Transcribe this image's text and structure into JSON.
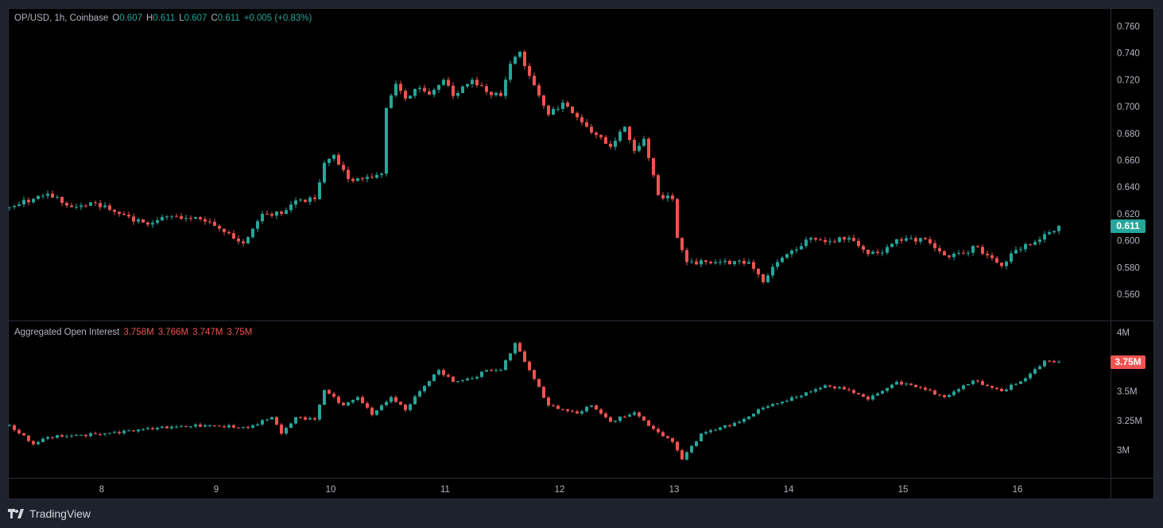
{
  "header": {
    "symbol": "OP/USD, 1h, Coinbase",
    "o_label": "O",
    "o": "0.607",
    "h_label": "H",
    "h": "0.611",
    "l_label": "L",
    "l": "0.607",
    "c_label": "C",
    "c": "0.611",
    "change": "+0.005 (+0.83%)"
  },
  "oi_legend": {
    "title": "Aggregated Open Interest",
    "o": "3.758M",
    "h": "3.766M",
    "l": "3.747M",
    "c": "3.75M"
  },
  "last_price_label": "0.611",
  "last_oi_label": "3.75M",
  "brand": "TradingView",
  "colors": {
    "up": "#26a69a",
    "down": "#ef5350"
  },
  "chart_data": [
    {
      "type": "candlestick",
      "title": "OP/USD, 1h, Coinbase",
      "x_unit": "hour index",
      "ylim": [
        0.545,
        0.772
      ],
      "y_ticks": [
        "0.560",
        "0.580",
        "0.600",
        "0.620",
        "0.640",
        "0.660",
        "0.680",
        "0.700",
        "0.720",
        "0.740",
        "0.760"
      ],
      "close_path": [
        [
          0,
          0.625
        ],
        [
          8,
          0.635
        ],
        [
          13,
          0.625
        ],
        [
          18,
          0.628
        ],
        [
          23,
          0.62
        ],
        [
          29,
          0.612
        ],
        [
          33,
          0.618
        ],
        [
          40,
          0.616
        ],
        [
          43,
          0.611
        ],
        [
          49,
          0.598
        ],
        [
          53,
          0.62
        ],
        [
          57,
          0.62
        ],
        [
          60,
          0.63
        ],
        [
          64,
          0.631
        ],
        [
          66,
          0.658
        ],
        [
          68,
          0.664
        ],
        [
          71,
          0.646
        ],
        [
          74,
          0.646
        ],
        [
          78,
          0.65
        ],
        [
          79,
          0.699
        ],
        [
          81,
          0.717
        ],
        [
          83,
          0.706
        ],
        [
          86,
          0.714
        ],
        [
          88,
          0.709
        ],
        [
          91,
          0.72
        ],
        [
          93,
          0.708
        ],
        [
          97,
          0.72
        ],
        [
          100,
          0.711
        ],
        [
          103,
          0.708
        ],
        [
          105,
          0.732
        ],
        [
          107,
          0.741
        ],
        [
          109,
          0.723
        ],
        [
          113,
          0.694
        ],
        [
          116,
          0.703
        ],
        [
          121,
          0.685
        ],
        [
          126,
          0.67
        ],
        [
          129,
          0.685
        ],
        [
          131,
          0.667
        ],
        [
          133,
          0.676
        ],
        [
          136,
          0.634
        ],
        [
          139,
          0.631
        ],
        [
          140,
          0.602
        ],
        [
          142,
          0.584
        ],
        [
          148,
          0.584
        ],
        [
          155,
          0.584
        ],
        [
          158,
          0.569
        ],
        [
          161,
          0.584
        ],
        [
          163,
          0.59
        ],
        [
          166,
          0.596
        ],
        [
          168,
          0.602
        ],
        [
          171,
          0.599
        ],
        [
          176,
          0.602
        ],
        [
          180,
          0.59
        ],
        [
          183,
          0.591
        ],
        [
          186,
          0.601
        ],
        [
          192,
          0.601
        ],
        [
          196,
          0.589
        ],
        [
          201,
          0.591
        ],
        [
          202,
          0.596
        ],
        [
          206,
          0.587
        ],
        [
          208,
          0.581
        ],
        [
          211,
          0.593
        ],
        [
          215,
          0.599
        ],
        [
          220,
          0.611
        ]
      ]
    },
    {
      "type": "candlestick",
      "title": "Aggregated Open Interest",
      "x_unit": "hour index",
      "ylim": [
        2.77,
        4.1
      ],
      "y_ticks": [
        "3M",
        "3.25M",
        "3.5M",
        "4M"
      ],
      "close_path": [
        [
          0,
          3.21
        ],
        [
          5,
          3.05
        ],
        [
          8,
          3.11
        ],
        [
          20,
          3.14
        ],
        [
          31,
          3.19
        ],
        [
          41,
          3.21
        ],
        [
          50,
          3.19
        ],
        [
          55,
          3.28
        ],
        [
          57,
          3.14
        ],
        [
          60,
          3.28
        ],
        [
          64,
          3.26
        ],
        [
          66,
          3.51
        ],
        [
          70,
          3.38
        ],
        [
          73,
          3.45
        ],
        [
          76,
          3.3
        ],
        [
          80,
          3.45
        ],
        [
          83,
          3.34
        ],
        [
          86,
          3.5
        ],
        [
          90,
          3.68
        ],
        [
          93,
          3.58
        ],
        [
          97,
          3.61
        ],
        [
          100,
          3.68
        ],
        [
          103,
          3.68
        ],
        [
          106,
          3.91
        ],
        [
          109,
          3.68
        ],
        [
          113,
          3.38
        ],
        [
          119,
          3.31
        ],
        [
          122,
          3.38
        ],
        [
          126,
          3.24
        ],
        [
          131,
          3.32
        ],
        [
          135,
          3.18
        ],
        [
          139,
          3.07
        ],
        [
          141,
          2.92
        ],
        [
          145,
          3.14
        ],
        [
          153,
          3.24
        ],
        [
          158,
          3.36
        ],
        [
          165,
          3.45
        ],
        [
          171,
          3.55
        ],
        [
          176,
          3.51
        ],
        [
          180,
          3.43
        ],
        [
          186,
          3.58
        ],
        [
          191,
          3.53
        ],
        [
          196,
          3.45
        ],
        [
          202,
          3.59
        ],
        [
          208,
          3.5
        ],
        [
          213,
          3.61
        ],
        [
          217,
          3.76
        ],
        [
          220,
          3.75
        ]
      ]
    }
  ],
  "time_axis": {
    "labels": [
      "8",
      "9",
      "10",
      "11",
      "12",
      "13",
      "14",
      "15",
      "16"
    ]
  }
}
